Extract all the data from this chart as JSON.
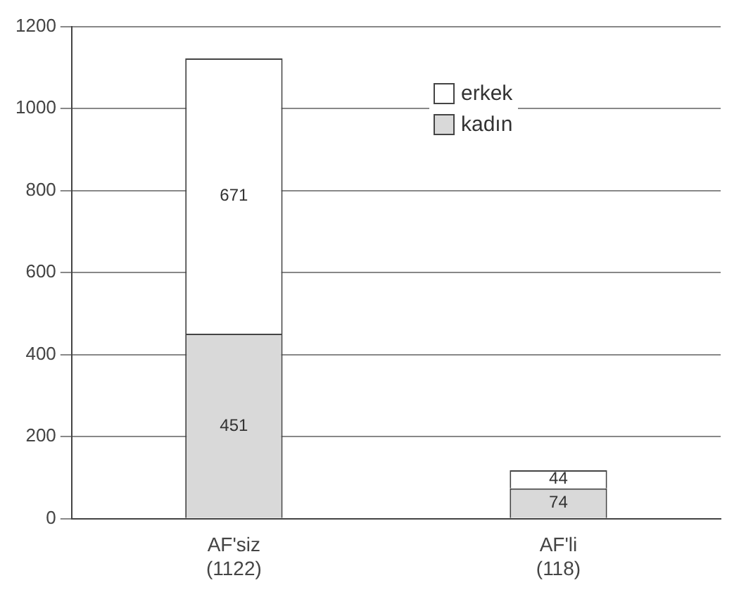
{
  "chart_data": {
    "type": "bar",
    "stacked": true,
    "categories": [
      "AF'siz (1122)",
      "AF'li (118)"
    ],
    "series": [
      {
        "name": "kadın",
        "color": "#d9d9d9",
        "values": [
          451,
          74
        ]
      },
      {
        "name": "erkek",
        "color": "#ffffff",
        "values": [
          671,
          44
        ]
      }
    ],
    "ylim": [
      0,
      1200
    ],
    "yticks": [
      0,
      200,
      400,
      600,
      800,
      1000,
      1200
    ],
    "grid": "y",
    "legend": "top right",
    "data_labels": true
  }
}
